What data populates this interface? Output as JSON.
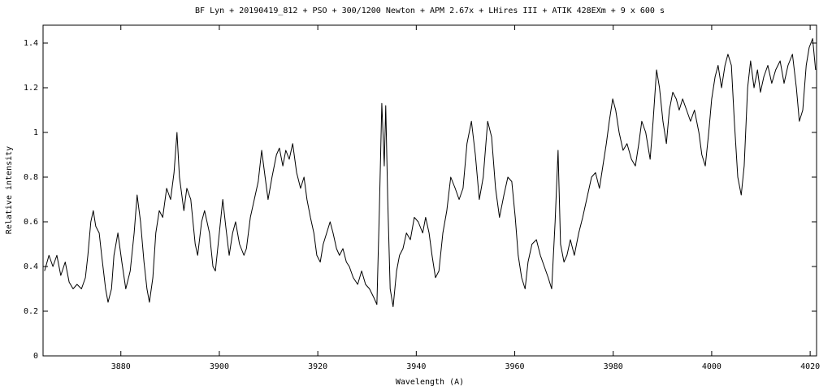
{
  "chart_data": {
    "type": "line",
    "title": "BF Lyn + 20190419_812 + PSO + 300/1200 Newton + APM 2.67x + LHires III + ATIK 428EXm + 9 x 600 s",
    "xlabel": "Wavelength (A)",
    "ylabel": "Relative intensity",
    "color": "#000000",
    "xlim": [
      3864.2,
      4021.3
    ],
    "ylim": [
      0,
      1.48
    ],
    "xticks": [
      3880,
      3900,
      3920,
      3940,
      3960,
      3980,
      4000,
      4020
    ],
    "yticks": [
      0,
      0.2,
      0.4,
      0.6,
      0.8,
      1,
      1.2,
      1.4
    ],
    "x": [
      3864.5,
      3865.4,
      3866.2,
      3867.0,
      3867.8,
      3868.7,
      3869.5,
      3870.3,
      3871.1,
      3872.0,
      3872.8,
      3873.3,
      3873.9,
      3874.4,
      3874.9,
      3875.6,
      3876.1,
      3876.9,
      3877.4,
      3878.1,
      3878.6,
      3879.4,
      3880.2,
      3881.0,
      3881.9,
      3882.7,
      3883.3,
      3884.0,
      3884.7,
      3885.3,
      3885.8,
      3886.5,
      3887.1,
      3887.8,
      3888.5,
      3889.3,
      3890.1,
      3890.8,
      3891.4,
      3891.9,
      3892.8,
      3893.4,
      3894.2,
      3895.1,
      3895.6,
      3896.4,
      3897.0,
      3898.0,
      3898.7,
      3899.2,
      3900.0,
      3900.7,
      3901.3,
      3902.0,
      3902.7,
      3903.3,
      3904.1,
      3905.0,
      3905.5,
      3906.3,
      3907.1,
      3907.9,
      3908.6,
      3909.3,
      3909.9,
      3910.7,
      3911.6,
      3912.2,
      3912.9,
      3913.5,
      3914.2,
      3914.9,
      3915.7,
      3916.5,
      3917.2,
      3917.8,
      3918.5,
      3919.2,
      3919.8,
      3920.5,
      3921.1,
      3921.8,
      3922.5,
      3923.1,
      3923.8,
      3924.4,
      3925.1,
      3925.8,
      3926.4,
      3927.2,
      3928.1,
      3928.9,
      3929.7,
      3930.5,
      3931.4,
      3932.0,
      3932.5,
      3933.0,
      3933.5,
      3933.8,
      3934.2,
      3934.7,
      3935.3,
      3936.0,
      3936.6,
      3937.3,
      3938.0,
      3938.8,
      3939.6,
      3940.4,
      3941.3,
      3941.9,
      3942.6,
      3943.2,
      3943.9,
      3944.6,
      3945.4,
      3946.2,
      3947.0,
      3947.9,
      3948.7,
      3949.5,
      3950.3,
      3951.2,
      3952.0,
      3952.8,
      3953.6,
      3954.5,
      3955.3,
      3956.1,
      3956.9,
      3957.8,
      3958.6,
      3959.4,
      3960.1,
      3960.7,
      3961.4,
      3962.1,
      3962.7,
      3963.5,
      3964.4,
      3965.2,
      3966.0,
      3966.8,
      3967.5,
      3968.2,
      3968.8,
      3969.3,
      3970.0,
      3970.6,
      3971.3,
      3972.1,
      3973.0,
      3973.8,
      3974.6,
      3975.6,
      3976.4,
      3977.2,
      3977.9,
      3978.6,
      3979.2,
      3979.9,
      3980.5,
      3981.2,
      3982.0,
      3982.8,
      3983.7,
      3984.5,
      3985.2,
      3985.8,
      3986.6,
      3987.5,
      3988.1,
      3988.8,
      3989.4,
      3990.1,
      3990.8,
      3991.4,
      3992.1,
      3992.8,
      3993.4,
      3994.1,
      3994.9,
      3995.7,
      3996.5,
      3997.4,
      3998.0,
      3998.7,
      3999.4,
      4000.0,
      4000.7,
      4001.3,
      4002.0,
      4002.7,
      4003.3,
      4004.0,
      4004.6,
      4005.3,
      4006.0,
      4006.6,
      4007.3,
      4007.9,
      4008.6,
      4009.3,
      4009.9,
      4010.6,
      4011.4,
      4012.2,
      4013.0,
      4013.9,
      4014.7,
      4015.5,
      4016.4,
      4017.2,
      4017.8,
      4018.5,
      4019.2,
      4019.8,
      4020.5,
      4021.1
    ],
    "values": [
      0.38,
      0.45,
      0.4,
      0.45,
      0.36,
      0.42,
      0.33,
      0.3,
      0.32,
      0.3,
      0.35,
      0.45,
      0.6,
      0.65,
      0.58,
      0.55,
      0.45,
      0.3,
      0.24,
      0.3,
      0.45,
      0.55,
      0.42,
      0.3,
      0.38,
      0.55,
      0.72,
      0.6,
      0.42,
      0.3,
      0.24,
      0.35,
      0.55,
      0.65,
      0.62,
      0.75,
      0.7,
      0.82,
      1.0,
      0.8,
      0.65,
      0.75,
      0.7,
      0.5,
      0.45,
      0.6,
      0.65,
      0.55,
      0.4,
      0.38,
      0.55,
      0.7,
      0.58,
      0.45,
      0.55,
      0.6,
      0.5,
      0.45,
      0.48,
      0.62,
      0.7,
      0.78,
      0.92,
      0.8,
      0.7,
      0.8,
      0.9,
      0.93,
      0.85,
      0.92,
      0.88,
      0.95,
      0.82,
      0.75,
      0.8,
      0.7,
      0.62,
      0.55,
      0.45,
      0.42,
      0.5,
      0.55,
      0.6,
      0.55,
      0.48,
      0.45,
      0.48,
      0.42,
      0.4,
      0.35,
      0.32,
      0.38,
      0.32,
      0.3,
      0.26,
      0.23,
      0.65,
      1.13,
      0.85,
      1.12,
      0.7,
      0.3,
      0.22,
      0.38,
      0.45,
      0.48,
      0.55,
      0.52,
      0.62,
      0.6,
      0.55,
      0.62,
      0.55,
      0.45,
      0.35,
      0.38,
      0.55,
      0.65,
      0.8,
      0.75,
      0.7,
      0.75,
      0.95,
      1.05,
      0.9,
      0.7,
      0.8,
      1.05,
      0.98,
      0.75,
      0.62,
      0.72,
      0.8,
      0.78,
      0.62,
      0.45,
      0.35,
      0.3,
      0.42,
      0.5,
      0.52,
      0.45,
      0.4,
      0.35,
      0.3,
      0.6,
      0.92,
      0.5,
      0.42,
      0.45,
      0.52,
      0.45,
      0.55,
      0.62,
      0.7,
      0.8,
      0.82,
      0.75,
      0.85,
      0.95,
      1.05,
      1.15,
      1.1,
      1.0,
      0.92,
      0.95,
      0.88,
      0.85,
      0.95,
      1.05,
      1.0,
      0.88,
      1.05,
      1.28,
      1.2,
      1.05,
      0.95,
      1.1,
      1.18,
      1.15,
      1.1,
      1.15,
      1.1,
      1.05,
      1.1,
      1.0,
      0.9,
      0.85,
      1.0,
      1.15,
      1.25,
      1.3,
      1.2,
      1.3,
      1.35,
      1.3,
      1.05,
      0.8,
      0.72,
      0.85,
      1.2,
      1.32,
      1.2,
      1.28,
      1.18,
      1.25,
      1.3,
      1.22,
      1.28,
      1.32,
      1.22,
      1.3,
      1.35,
      1.2,
      1.05,
      1.1,
      1.3,
      1.38,
      1.42,
      1.28
    ]
  }
}
